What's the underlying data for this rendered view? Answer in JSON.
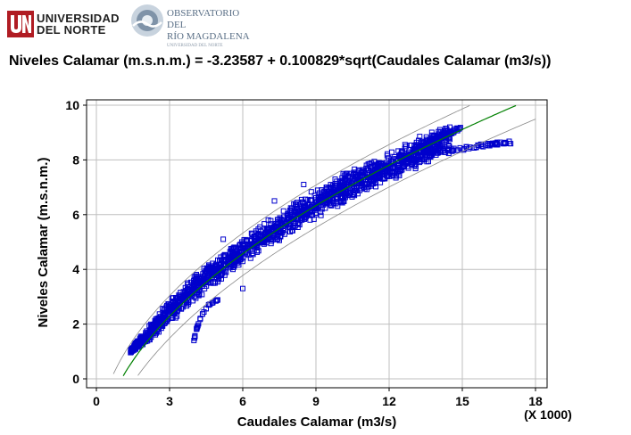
{
  "header": {
    "un_logo": {
      "line1": "UNIVERSIDAD",
      "line2": "DEL NORTE"
    },
    "obs_logo": {
      "line1": "OBSERVATORIO DEL",
      "line2": "RÍO MAGDALENA",
      "tagline": "UNIVERSIDAD DEL NORTE"
    }
  },
  "colors": {
    "points": "#0000cc",
    "fit_line": "#008000",
    "prediction_limits": "#888888",
    "grid": "#bfbfbf",
    "brand_red": "#b01c23"
  },
  "chart_data": {
    "type": "scatter",
    "title": "Niveles Calamar (m.s.n.m.) = -3.23587 + 0.100829*sqrt(Caudales Calamar (m3/s))",
    "xlabel": "Caudales Calamar (m3/s)",
    "ylabel": "Niveles Calamar (m.s.n.m.)",
    "x_scale_note": "(X 1000)",
    "xlim": [
      0,
      18
    ],
    "ylim": [
      0,
      10
    ],
    "xticks": [
      "0",
      "3",
      "6",
      "9",
      "12",
      "15",
      "18"
    ],
    "yticks": [
      "0",
      "2",
      "4",
      "6",
      "8",
      "10"
    ],
    "grid": true,
    "fit": {
      "intercept": -3.23587,
      "coef": 0.100829,
      "form": "a + b*sqrt(x)"
    },
    "series": [
      {
        "marker": "square",
        "envelope_lower": [
          [
            1.4,
            0.95
          ],
          [
            2,
            1.25
          ],
          [
            3,
            2.0
          ],
          [
            4,
            2.8
          ],
          [
            5,
            3.5
          ],
          [
            6,
            4.15
          ],
          [
            7,
            4.75
          ],
          [
            8,
            5.3
          ],
          [
            9,
            5.8
          ],
          [
            10,
            6.3
          ],
          [
            11,
            6.8
          ],
          [
            12,
            7.2
          ],
          [
            13,
            7.6
          ],
          [
            14,
            8.0
          ],
          [
            14.5,
            8.2
          ]
        ],
        "envelope_upper": [
          [
            1.4,
            1.1
          ],
          [
            2,
            1.8
          ],
          [
            3,
            2.9
          ],
          [
            4,
            3.8
          ],
          [
            5,
            4.55
          ],
          [
            6,
            5.2
          ],
          [
            7,
            5.8
          ],
          [
            8,
            6.4
          ],
          [
            9,
            7.0
          ],
          [
            10,
            7.5
          ],
          [
            11,
            7.9
          ],
          [
            12,
            8.3
          ],
          [
            13,
            8.8
          ],
          [
            14,
            9.2
          ],
          [
            14.5,
            9.35
          ]
        ],
        "tail_upper": [
          [
            13,
            8.35
          ],
          [
            14,
            8.8
          ],
          [
            15,
            9.2
          ]
        ],
        "tail_lower": [
          [
            13,
            8.1
          ],
          [
            14,
            8.3
          ],
          [
            15,
            8.4
          ],
          [
            16,
            8.55
          ],
          [
            17,
            8.65
          ]
        ],
        "low_branch": [
          [
            4.0,
            1.4
          ],
          [
            4.1,
            1.8
          ],
          [
            4.3,
            2.3
          ],
          [
            4.6,
            2.7
          ],
          [
            5.0,
            2.9
          ]
        ],
        "outliers": [
          [
            6.0,
            3.3
          ],
          [
            8.5,
            7.1
          ],
          [
            7.3,
            6.5
          ],
          [
            3.1,
            2.95
          ],
          [
            5.2,
            5.1
          ]
        ]
      }
    ]
  }
}
